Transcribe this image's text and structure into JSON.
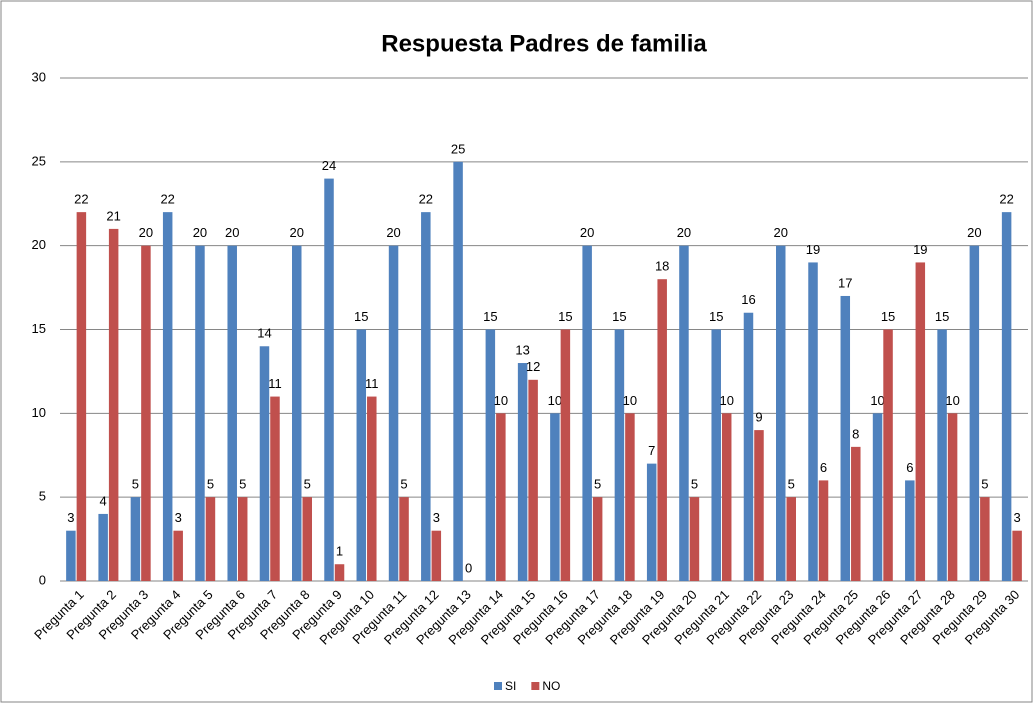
{
  "chart_data": {
    "type": "bar",
    "title": "Respuesta Padres de familia",
    "categories": [
      "Pregunta 1",
      "Pregunta 2",
      "Pregunta 3",
      "Pregunta 4",
      "Pregunta 5",
      "Pregunta 6",
      "Pregunta 7",
      "Pregunta 8",
      "Pregunta 9",
      "Pregunta 10",
      "Pregunta 11",
      "Pregunta 12",
      "Pregunta 13",
      "Pregunta 14",
      "Pregunta 15",
      "Pregunta 16",
      "Pregunta 17",
      "Pregunta 18",
      "Pregunta 19",
      "Pregunta 20",
      "Pregunta 21",
      "Pregunta 22",
      "Pregunta 23",
      "Pregunta 24",
      "Pregunta 25",
      "Pregunta 26",
      "Pregunta 27",
      "Pregunta 28",
      "Pregunta 29",
      "Pregunta 30"
    ],
    "series": [
      {
        "name": "SI",
        "color": "#4f81bd",
        "values": [
          3,
          4,
          5,
          22,
          20,
          20,
          14,
          20,
          24,
          15,
          20,
          22,
          25,
          15,
          13,
          10,
          20,
          15,
          7,
          20,
          15,
          16,
          20,
          19,
          17,
          10,
          6,
          15,
          20,
          22
        ]
      },
      {
        "name": "NO",
        "color": "#c0504d",
        "values": [
          22,
          21,
          20,
          3,
          5,
          5,
          11,
          5,
          1,
          11,
          5,
          3,
          0,
          10,
          12,
          15,
          5,
          10,
          18,
          5,
          10,
          9,
          5,
          6,
          8,
          15,
          19,
          10,
          5,
          3
        ]
      }
    ],
    "ylim": [
      0,
      30
    ],
    "yticks": [
      0,
      5,
      10,
      15,
      20,
      25,
      30
    ],
    "grid": true,
    "legend": "bottom"
  }
}
